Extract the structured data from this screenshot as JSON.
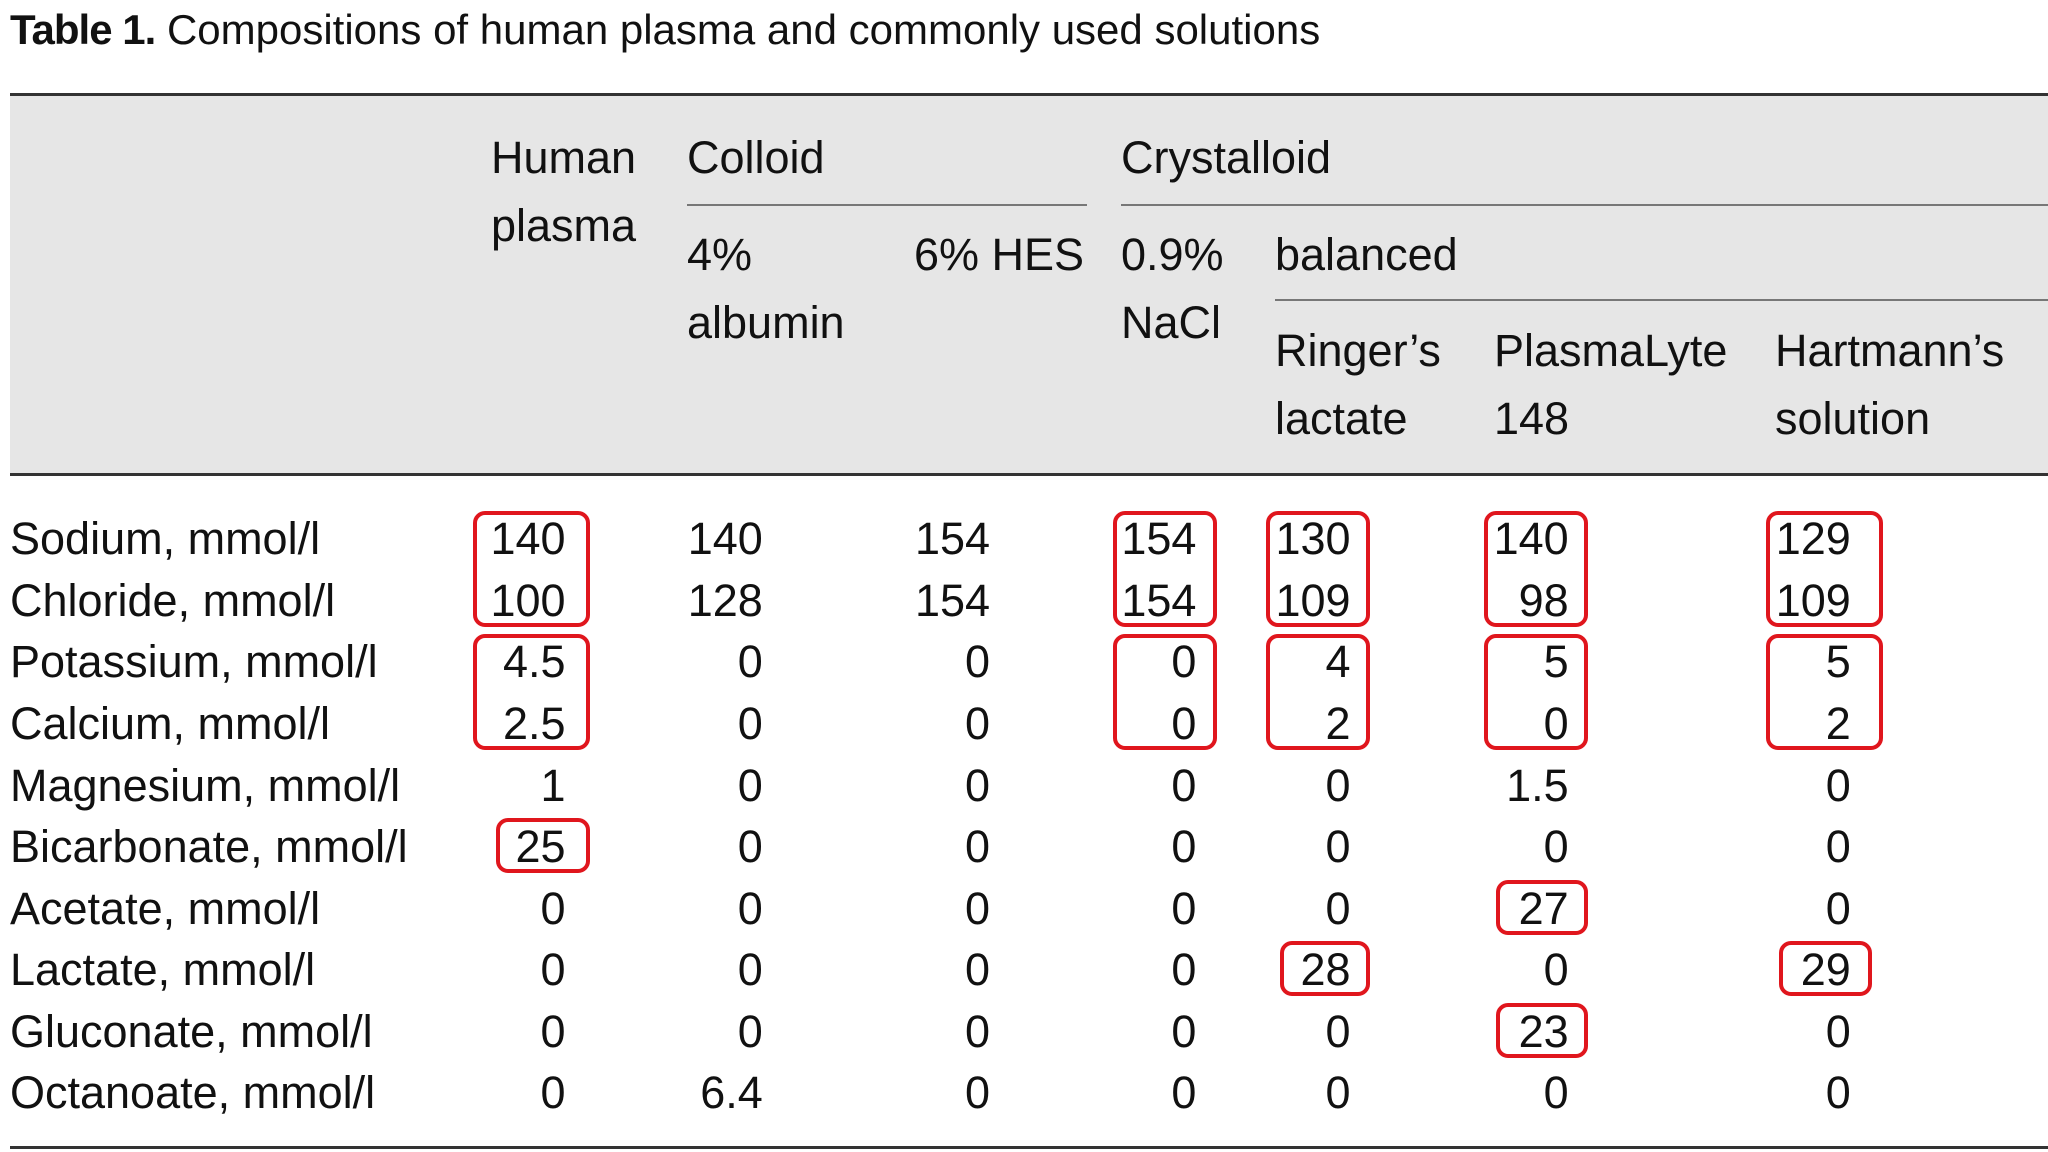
{
  "title": {
    "label": "Table 1.",
    "text": "Compositions of human plasma and commonly used solutions"
  },
  "table": {
    "headers": {
      "human_plasma": "Human plasma",
      "colloid": "Colloid",
      "crystalloid": "Crystalloid",
      "albumin": "4% albumin",
      "hes": "6% HES",
      "nacl": "0.9% NaCl",
      "balanced": "balanced",
      "ringer": "Ringer’s lactate",
      "plasmalyte": "PlasmaLyte 148",
      "hartmann": "Hartmann’s solution"
    },
    "rows": [
      [
        "Sodium, mmol/l",
        140,
        140,
        154,
        154,
        130,
        140,
        129
      ],
      [
        "Chloride, mmol/l",
        100,
        128,
        154,
        154,
        109,
        98,
        109
      ],
      [
        "Potassium, mmol/l",
        4.5,
        0,
        0,
        0,
        4,
        5,
        5
      ],
      [
        "Calcium, mmol/l",
        2.5,
        0,
        0,
        0,
        2,
        0,
        2
      ],
      [
        "Magnesium, mmol/l",
        1,
        0,
        0,
        0,
        0,
        1.5,
        0
      ],
      [
        "Bicarbonate, mmol/l",
        25,
        0,
        0,
        0,
        0,
        0,
        0
      ],
      [
        "Acetate, mmol/l",
        0,
        0,
        0,
        0,
        0,
        27,
        0
      ],
      [
        "Lactate, mmol/l",
        0,
        0,
        0,
        0,
        28,
        0,
        29
      ],
      [
        "Gluconate, mmol/l",
        0,
        0,
        0,
        0,
        0,
        23,
        0
      ],
      [
        "Octanoate, mmol/l",
        0,
        6.4,
        0,
        0,
        0,
        0,
        0
      ]
    ]
  }
}
